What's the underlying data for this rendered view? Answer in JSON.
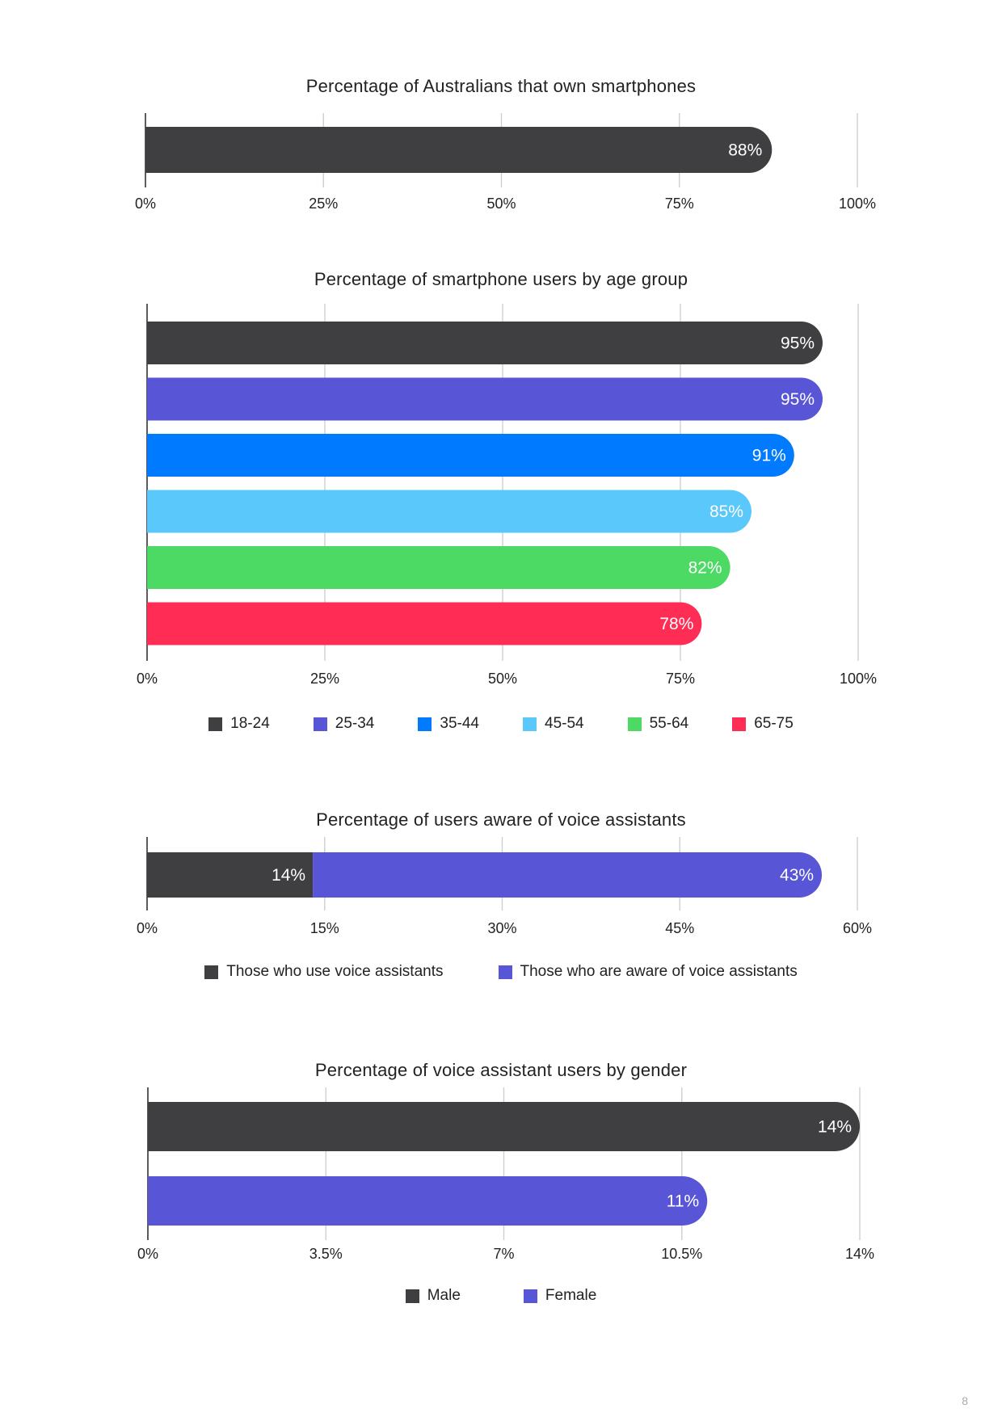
{
  "chart_data": [
    {
      "type": "bar",
      "orientation": "horizontal",
      "title": "Percentage of Australians that own smartphones",
      "categories": [
        ""
      ],
      "series": [
        {
          "values": [
            88
          ],
          "labels": [
            "88%"
          ]
        }
      ],
      "xlim": [
        0,
        100
      ],
      "ticks": [
        "0%",
        "25%",
        "50%",
        "75%",
        "100%"
      ],
      "grid": true,
      "colors": [
        "#3f3f41"
      ]
    },
    {
      "type": "bar",
      "orientation": "horizontal",
      "title": "Percentage of smartphone users by age group",
      "categories": [
        "18-24",
        "25-34",
        "35-44",
        "45-54",
        "55-64",
        "65-75"
      ],
      "values": [
        95,
        95,
        91,
        85,
        82,
        78
      ],
      "labels": [
        "95%",
        "95%",
        "91%",
        "85%",
        "82%",
        "78%"
      ],
      "xlim": [
        0,
        100
      ],
      "ticks": [
        "0%",
        "25%",
        "50%",
        "75%",
        "100%"
      ],
      "grid": true,
      "legend": [
        "18-24",
        "25-34",
        "35-44",
        "45-54",
        "55-64",
        "65-75"
      ],
      "legend_position": "bottom",
      "colors": [
        "#3f3f41",
        "#5856d6",
        "#007aff",
        "#5ac8fa",
        "#4cd964",
        "#ff2d55"
      ]
    },
    {
      "type": "bar",
      "orientation": "horizontal",
      "stacked": true,
      "title": "Percentage of users aware of voice assistants",
      "categories": [
        ""
      ],
      "series": [
        {
          "name": "Those who use voice assistants",
          "values": [
            14
          ],
          "labels": [
            "14%"
          ]
        },
        {
          "name": "Those who are aware of voice assistants",
          "values": [
            43
          ],
          "labels": [
            "43%"
          ]
        }
      ],
      "xlim": [
        0,
        60
      ],
      "ticks": [
        "0%",
        "15%",
        "30%",
        "45%",
        "60%"
      ],
      "grid": true,
      "legend_position": "bottom",
      "colors": [
        "#3f3f41",
        "#5856d6"
      ]
    },
    {
      "type": "bar",
      "orientation": "horizontal",
      "title": "Percentage of voice assistant users by gender",
      "categories": [
        "Male",
        "Female"
      ],
      "values": [
        14,
        11
      ],
      "labels": [
        "14%",
        "11%"
      ],
      "xlim": [
        0,
        14
      ],
      "ticks": [
        "0%",
        "3.5%",
        "7%",
        "10.5%",
        "14%"
      ],
      "grid": true,
      "legend": [
        "Male",
        "Female"
      ],
      "legend_position": "bottom",
      "colors": [
        "#3f3f41",
        "#5856d6"
      ]
    }
  ],
  "page_number": "8"
}
